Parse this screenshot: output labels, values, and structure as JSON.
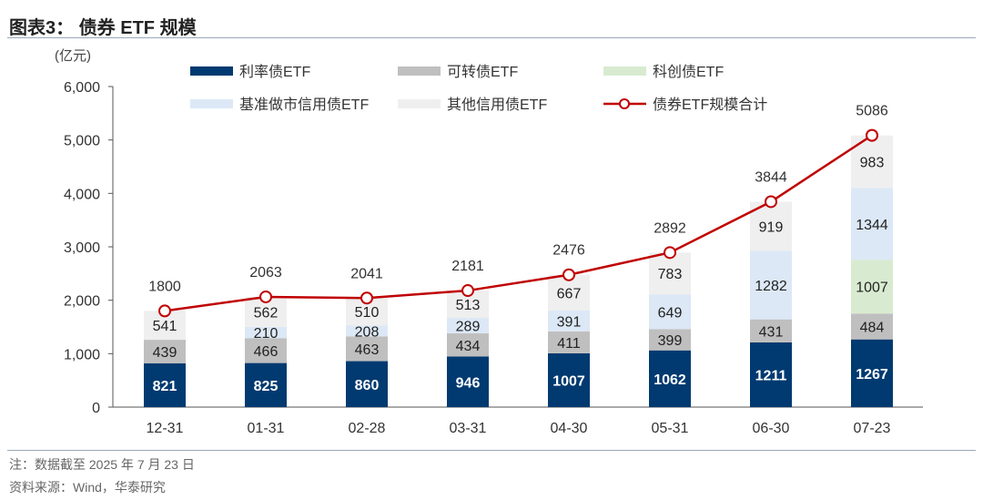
{
  "title": "图表3： 债券 ETF 规模",
  "notes": {
    "note": "注：数据截至 2025 年 7 月 23 日",
    "source": "资料来源：Wind，华泰研究"
  },
  "chart_data": {
    "type": "bar",
    "stacked": true,
    "unit_label": "(亿元)",
    "categories": [
      "12-31",
      "01-31",
      "02-28",
      "03-31",
      "04-30",
      "05-31",
      "06-30",
      "07-23"
    ],
    "ylim": [
      0,
      6000
    ],
    "yticks": [
      0,
      1000,
      2000,
      3000,
      4000,
      5000,
      6000
    ],
    "ytick_labels": [
      "0",
      "1,000",
      "2,000",
      "3,000",
      "4,000",
      "5,000",
      "6,000"
    ],
    "grid": false,
    "legend_placement": "top",
    "series": [
      {
        "name": "利率债ETF",
        "color": "#003a70",
        "label_color": "#ffffff",
        "values": [
          821,
          825,
          860,
          946,
          1007,
          1062,
          1211,
          1267
        ]
      },
      {
        "name": "可转债ETF",
        "color": "#bfbfbf",
        "label_color": "#222222",
        "values": [
          439,
          466,
          463,
          434,
          411,
          399,
          431,
          484
        ]
      },
      {
        "name": "科创债ETF",
        "color": "#d8ebd0",
        "label_color": "#222222",
        "values": [
          0,
          0,
          0,
          0,
          0,
          0,
          0,
          1007
        ]
      },
      {
        "name": "基准做市信用债ETF",
        "color": "#dce8f6",
        "label_color": "#222222",
        "values": [
          0,
          210,
          208,
          289,
          391,
          649,
          1282,
          1344
        ]
      },
      {
        "name": "其他信用债ETF",
        "color": "#efefef",
        "label_color": "#222222",
        "values": [
          541,
          562,
          510,
          513,
          667,
          783,
          919,
          983
        ]
      }
    ],
    "line": {
      "name": "债券ETF规模合计",
      "color": "#c00000",
      "values": [
        1800,
        2063,
        2041,
        2181,
        2476,
        2892,
        3844,
        5086
      ]
    }
  }
}
